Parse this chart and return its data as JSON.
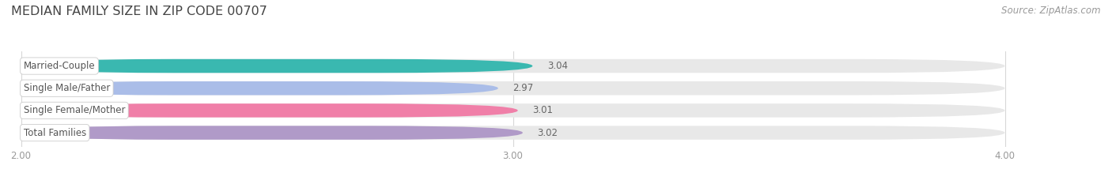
{
  "title": "MEDIAN FAMILY SIZE IN ZIP CODE 00707",
  "source": "Source: ZipAtlas.com",
  "categories": [
    "Married-Couple",
    "Single Male/Father",
    "Single Female/Mother",
    "Total Families"
  ],
  "values": [
    3.04,
    2.97,
    3.01,
    3.02
  ],
  "bar_colors": [
    "#3ab8b0",
    "#aabde8",
    "#f07fa8",
    "#b09ac8"
  ],
  "bar_bg_color": "#e8e8e8",
  "xlim": [
    2.0,
    4.0
  ],
  "xticks": [
    2.0,
    3.0,
    4.0
  ],
  "xtick_labels": [
    "2.00",
    "3.00",
    "4.00"
  ],
  "title_fontsize": 11.5,
  "label_fontsize": 8.5,
  "value_fontsize": 8.5,
  "source_fontsize": 8.5,
  "bar_height": 0.62,
  "background_color": "#ffffff",
  "grid_color": "#d8d8d8",
  "tick_color": "#999999",
  "value_color": "#666666",
  "label_color": "#555555",
  "title_color": "#444444"
}
